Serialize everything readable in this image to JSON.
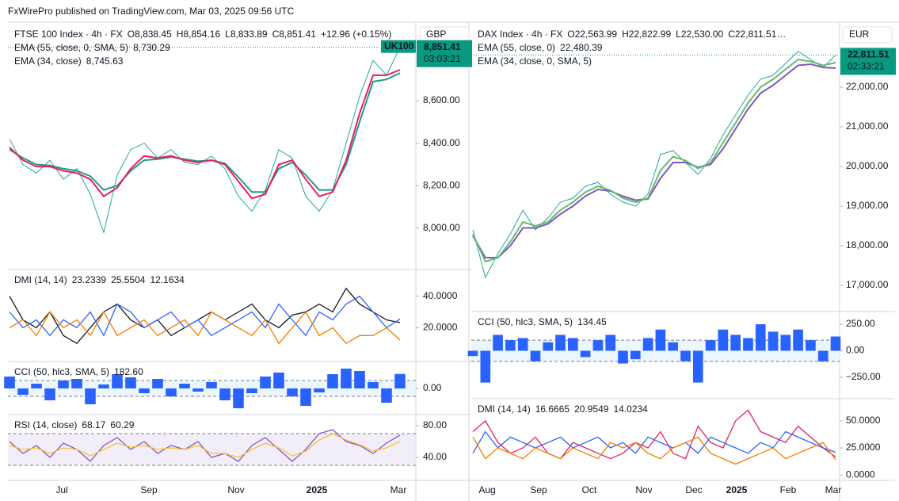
{
  "header": "FxWirePro published on TradingView.com, Mar 03, 2025 09:56 UTC",
  "left": {
    "symbol": "FTSE 100 Index · 4h · FX",
    "ohlc": [
      "O8,838.45",
      "H8,854.16",
      "L8,833.89",
      "C8,851.41"
    ],
    "change": "+12.96 (+0.15%)",
    "currency": "GBP",
    "badge": {
      "tag": "UK100",
      "price": "8,851.41",
      "countdown": "03:03:21"
    },
    "time_labels": [
      "Jul",
      "Sep",
      "Nov",
      "2025",
      "Mar"
    ],
    "panels": {
      "main": {
        "ylim": [
          7813,
          8962
        ],
        "yticks": [
          {
            "value": 8000,
            "label": "8,000.00"
          },
          {
            "value": 8200,
            "label": "8,200.00"
          },
          {
            "value": 8400,
            "label": "8,400.00"
          },
          {
            "value": 8600,
            "label": "8,600.00"
          }
        ],
        "close": {
          "color": "#26a69a",
          "values": [
            8420,
            8300,
            8260,
            8320,
            8230,
            8280,
            8160,
            7980,
            8250,
            8370,
            8400,
            8330,
            8370,
            8310,
            8300,
            8340,
            8280,
            8150,
            8080,
            8180,
            8370,
            8330,
            8150,
            8080,
            8180,
            8400,
            8620,
            8790,
            8720,
            8851.41
          ]
        },
        "series": [
          {
            "name": "EMA (55, close, 0, SMA, 5)",
            "last": "8,730.29",
            "color": "#1e9c8c",
            "values": [
              8370,
              8330,
              8300,
              8295,
              8280,
              8270,
              8245,
              8180,
              8200,
              8270,
              8320,
              8325,
              8335,
              8325,
              8315,
              8320,
              8305,
              8240,
              8170,
              8170,
              8280,
              8310,
              8250,
              8180,
              8180,
              8300,
              8500,
              8690,
              8700,
              8730.29
            ]
          },
          {
            "name": "EMA (34, close)",
            "last": "8,745.63",
            "color": "#e91e63",
            "values": [
              8380,
              8320,
              8290,
              8290,
              8270,
              8260,
              8230,
              8150,
              8190,
              8280,
              8340,
              8330,
              8340,
              8320,
              8310,
              8320,
              8300,
              8220,
              8140,
              8160,
              8300,
              8320,
              8230,
              8150,
              8170,
              8320,
              8540,
              8720,
              8720,
              8745.63
            ]
          }
        ]
      },
      "dmi": {
        "title": "DMI (14, 14)",
        "ylim": [
          -1,
          56
        ],
        "yticks": [
          {
            "value": 20,
            "label": "20.0000"
          },
          {
            "value": 40,
            "label": "40.0000"
          }
        ],
        "series": [
          {
            "last": "23.2339",
            "color": "#131722",
            "values": [
              40,
              25,
              20,
              30,
              15,
              10,
              20,
              30,
              35,
              25,
              20,
              25,
              15,
              20,
              25,
              30,
              25,
              30,
              35,
              25,
              20,
              28,
              30,
              35,
              30,
              45,
              35,
              30,
              25,
              23.2339
            ]
          },
          {
            "last": "25.5504",
            "color": "#2962ff",
            "values": [
              30,
              20,
              25,
              15,
              25,
              20,
              30,
              15,
              35,
              30,
              20,
              25,
              30,
              20,
              25,
              15,
              20,
              25,
              30,
              20,
              35,
              25,
              15,
              30,
              25,
              35,
              40,
              30,
              20,
              25.5504
            ]
          },
          {
            "last": "12.1634",
            "color": "#f57c00",
            "values": [
              20,
              25,
              15,
              30,
              20,
              25,
              15,
              30,
              15,
              20,
              25,
              15,
              20,
              25,
              15,
              30,
              25,
              20,
              15,
              25,
              10,
              20,
              30,
              15,
              20,
              10,
              15,
              15,
              20,
              12.1634
            ]
          }
        ]
      },
      "cci": {
        "title": "CCI (50, hlc3, SMA, 5)",
        "ylim": [
          -300,
          320
        ],
        "yticks": [
          {
            "value": 0,
            "label": "0.00"
          }
        ],
        "band": [
          -100,
          100
        ],
        "series": [
          {
            "last": "182.60",
            "color": "#2962ff",
            "style": "histogram",
            "values": [
              150,
              -80,
              60,
              -150,
              100,
              120,
              -200,
              50,
              180,
              140,
              -60,
              120,
              -100,
              60,
              -40,
              80,
              -150,
              -250,
              -60,
              150,
              200,
              -100,
              -220,
              -50,
              180,
              250,
              220,
              80,
              -180,
              182.6
            ]
          }
        ]
      },
      "rsi": {
        "title": "RSI (14, close)",
        "ylim": [
          12,
          92
        ],
        "yticks": [
          {
            "value": 40,
            "label": "40.00"
          },
          {
            "value": 80,
            "label": "80.00"
          }
        ],
        "band": [
          30,
          70
        ],
        "series": [
          {
            "last": "68.17",
            "color": "#7e57c2",
            "values": [
              60,
              45,
              55,
              40,
              58,
              50,
              35,
              55,
              65,
              50,
              60,
              45,
              55,
              50,
              60,
              40,
              45,
              35,
              55,
              65,
              50,
              35,
              50,
              70,
              75,
              60,
              55,
              45,
              58,
              68.17
            ]
          },
          {
            "last": "60.29",
            "color": "#fbc02d",
            "values": [
              55,
              50,
              52,
              45,
              52,
              50,
              42,
              50,
              58,
              53,
              55,
              50,
              52,
              50,
              55,
              45,
              45,
              40,
              50,
              58,
              52,
              42,
              48,
              62,
              70,
              62,
              56,
              48,
              52,
              60.29
            ]
          }
        ]
      }
    }
  },
  "right": {
    "symbol": "DAX Index · 4h · FX",
    "ohlc": [
      "O22,563.99",
      "H22,822.99",
      "L22,530.00",
      "C22,811.51…"
    ],
    "currency": "EUR",
    "badge": {
      "price": "22,811.51",
      "countdown": "02:33:21"
    },
    "time_labels": [
      "Aug",
      "Sep",
      "Oct",
      "Nov",
      "Dec",
      "2025",
      "Feb",
      "Mar"
    ],
    "panels": {
      "main": {
        "ylim": [
          16400,
          23600
        ],
        "yticks": [
          {
            "value": 17000,
            "label": "17,000.00"
          },
          {
            "value": 18000,
            "label": "18,000.00"
          },
          {
            "value": 19000,
            "label": "19,000.00"
          },
          {
            "value": 20000,
            "label": "20,000.00"
          },
          {
            "value": 21000,
            "label": "21,000.00"
          },
          {
            "value": 22000,
            "label": "22,000.00"
          }
        ],
        "close": {
          "color": "#26a69a",
          "values": [
            18400,
            17200,
            17800,
            18300,
            18900,
            18400,
            18700,
            19100,
            19200,
            19500,
            19600,
            19300,
            19100,
            19000,
            19300,
            20300,
            20400,
            20100,
            19800,
            20200,
            20800,
            21300,
            21800,
            22200,
            22300,
            22600,
            22900,
            22700,
            22500,
            22811.51
          ]
        },
        "series": [
          {
            "name": "EMA (55, close, 0)",
            "last": "22,480.39",
            "color": "#7e57c2",
            "values": [
              18250,
              17700,
              17700,
              18000,
              18450,
              18450,
              18550,
              18800,
              19000,
              19250,
              19420,
              19380,
              19250,
              19150,
              19180,
              19700,
              20100,
              20100,
              19980,
              20050,
              20450,
              20950,
              21450,
              21850,
              22050,
              22300,
              22550,
              22580,
              22500,
              22480.39
            ]
          },
          {
            "name": "EMA (34, close, 0, SMA, 5)",
            "color": "#66bb6a",
            "values": [
              18300,
              17600,
              17700,
              18100,
              18600,
              18500,
              18600,
              18900,
              19100,
              19350,
              19500,
              19400,
              19200,
              19100,
              19200,
              19900,
              20250,
              20150,
              19950,
              20100,
              20600,
              21100,
              21600,
              22000,
              22200,
              22450,
              22700,
              22650,
              22550,
              22620
            ]
          }
        ]
      },
      "cci": {
        "title": "CCI (50, hlc3, SMA, 5)",
        "ylim": [
          -430,
          355
        ],
        "yticks": [
          {
            "value": -250,
            "label": "−250.00"
          },
          {
            "value": 0,
            "label": "0.00"
          },
          {
            "value": 250,
            "label": "250.00"
          }
        ],
        "band": [
          -100,
          100
        ],
        "series": [
          {
            "last": "134.45",
            "color": "#2962ff",
            "style": "histogram",
            "values": [
              -50,
              -300,
              150,
              100,
              120,
              -100,
              80,
              150,
              120,
              -60,
              100,
              150,
              -120,
              -80,
              120,
              200,
              80,
              -100,
              -300,
              100,
              200,
              150,
              120,
              250,
              180,
              150,
              200,
              100,
              -100,
              134.45
            ]
          }
        ]
      },
      "dmi": {
        "title": "DMI (14, 14)",
        "ylim": [
          -8,
          69
        ],
        "yticks": [
          {
            "value": 0,
            "label": "0.0000"
          },
          {
            "value": 25,
            "label": "25.0000"
          },
          {
            "value": 50,
            "label": "50.0000"
          }
        ],
        "series": [
          {
            "last": "16.6665",
            "color": "#e91e63",
            "values": [
              40,
              50,
              30,
              20,
              25,
              35,
              20,
              15,
              30,
              25,
              20,
              15,
              20,
              30,
              25,
              40,
              20,
              15,
              45,
              30,
              25,
              50,
              60,
              40,
              35,
              30,
              45,
              35,
              25,
              16.6665
            ]
          },
          {
            "last": "20.9549",
            "color": "#2962ff",
            "values": [
              20,
              40,
              25,
              35,
              30,
              25,
              30,
              35,
              25,
              30,
              35,
              25,
              30,
              20,
              35,
              30,
              25,
              30,
              20,
              35,
              30,
              25,
              20,
              30,
              25,
              40,
              35,
              30,
              25,
              20.9549
            ]
          },
          {
            "last": "14.0234",
            "color": "#f57c00",
            "values": [
              35,
              15,
              25,
              20,
              15,
              25,
              20,
              15,
              25,
              20,
              15,
              30,
              25,
              30,
              20,
              15,
              25,
              30,
              35,
              20,
              15,
              10,
              15,
              20,
              25,
              15,
              20,
              25,
              30,
              14.0234
            ]
          }
        ]
      }
    }
  }
}
